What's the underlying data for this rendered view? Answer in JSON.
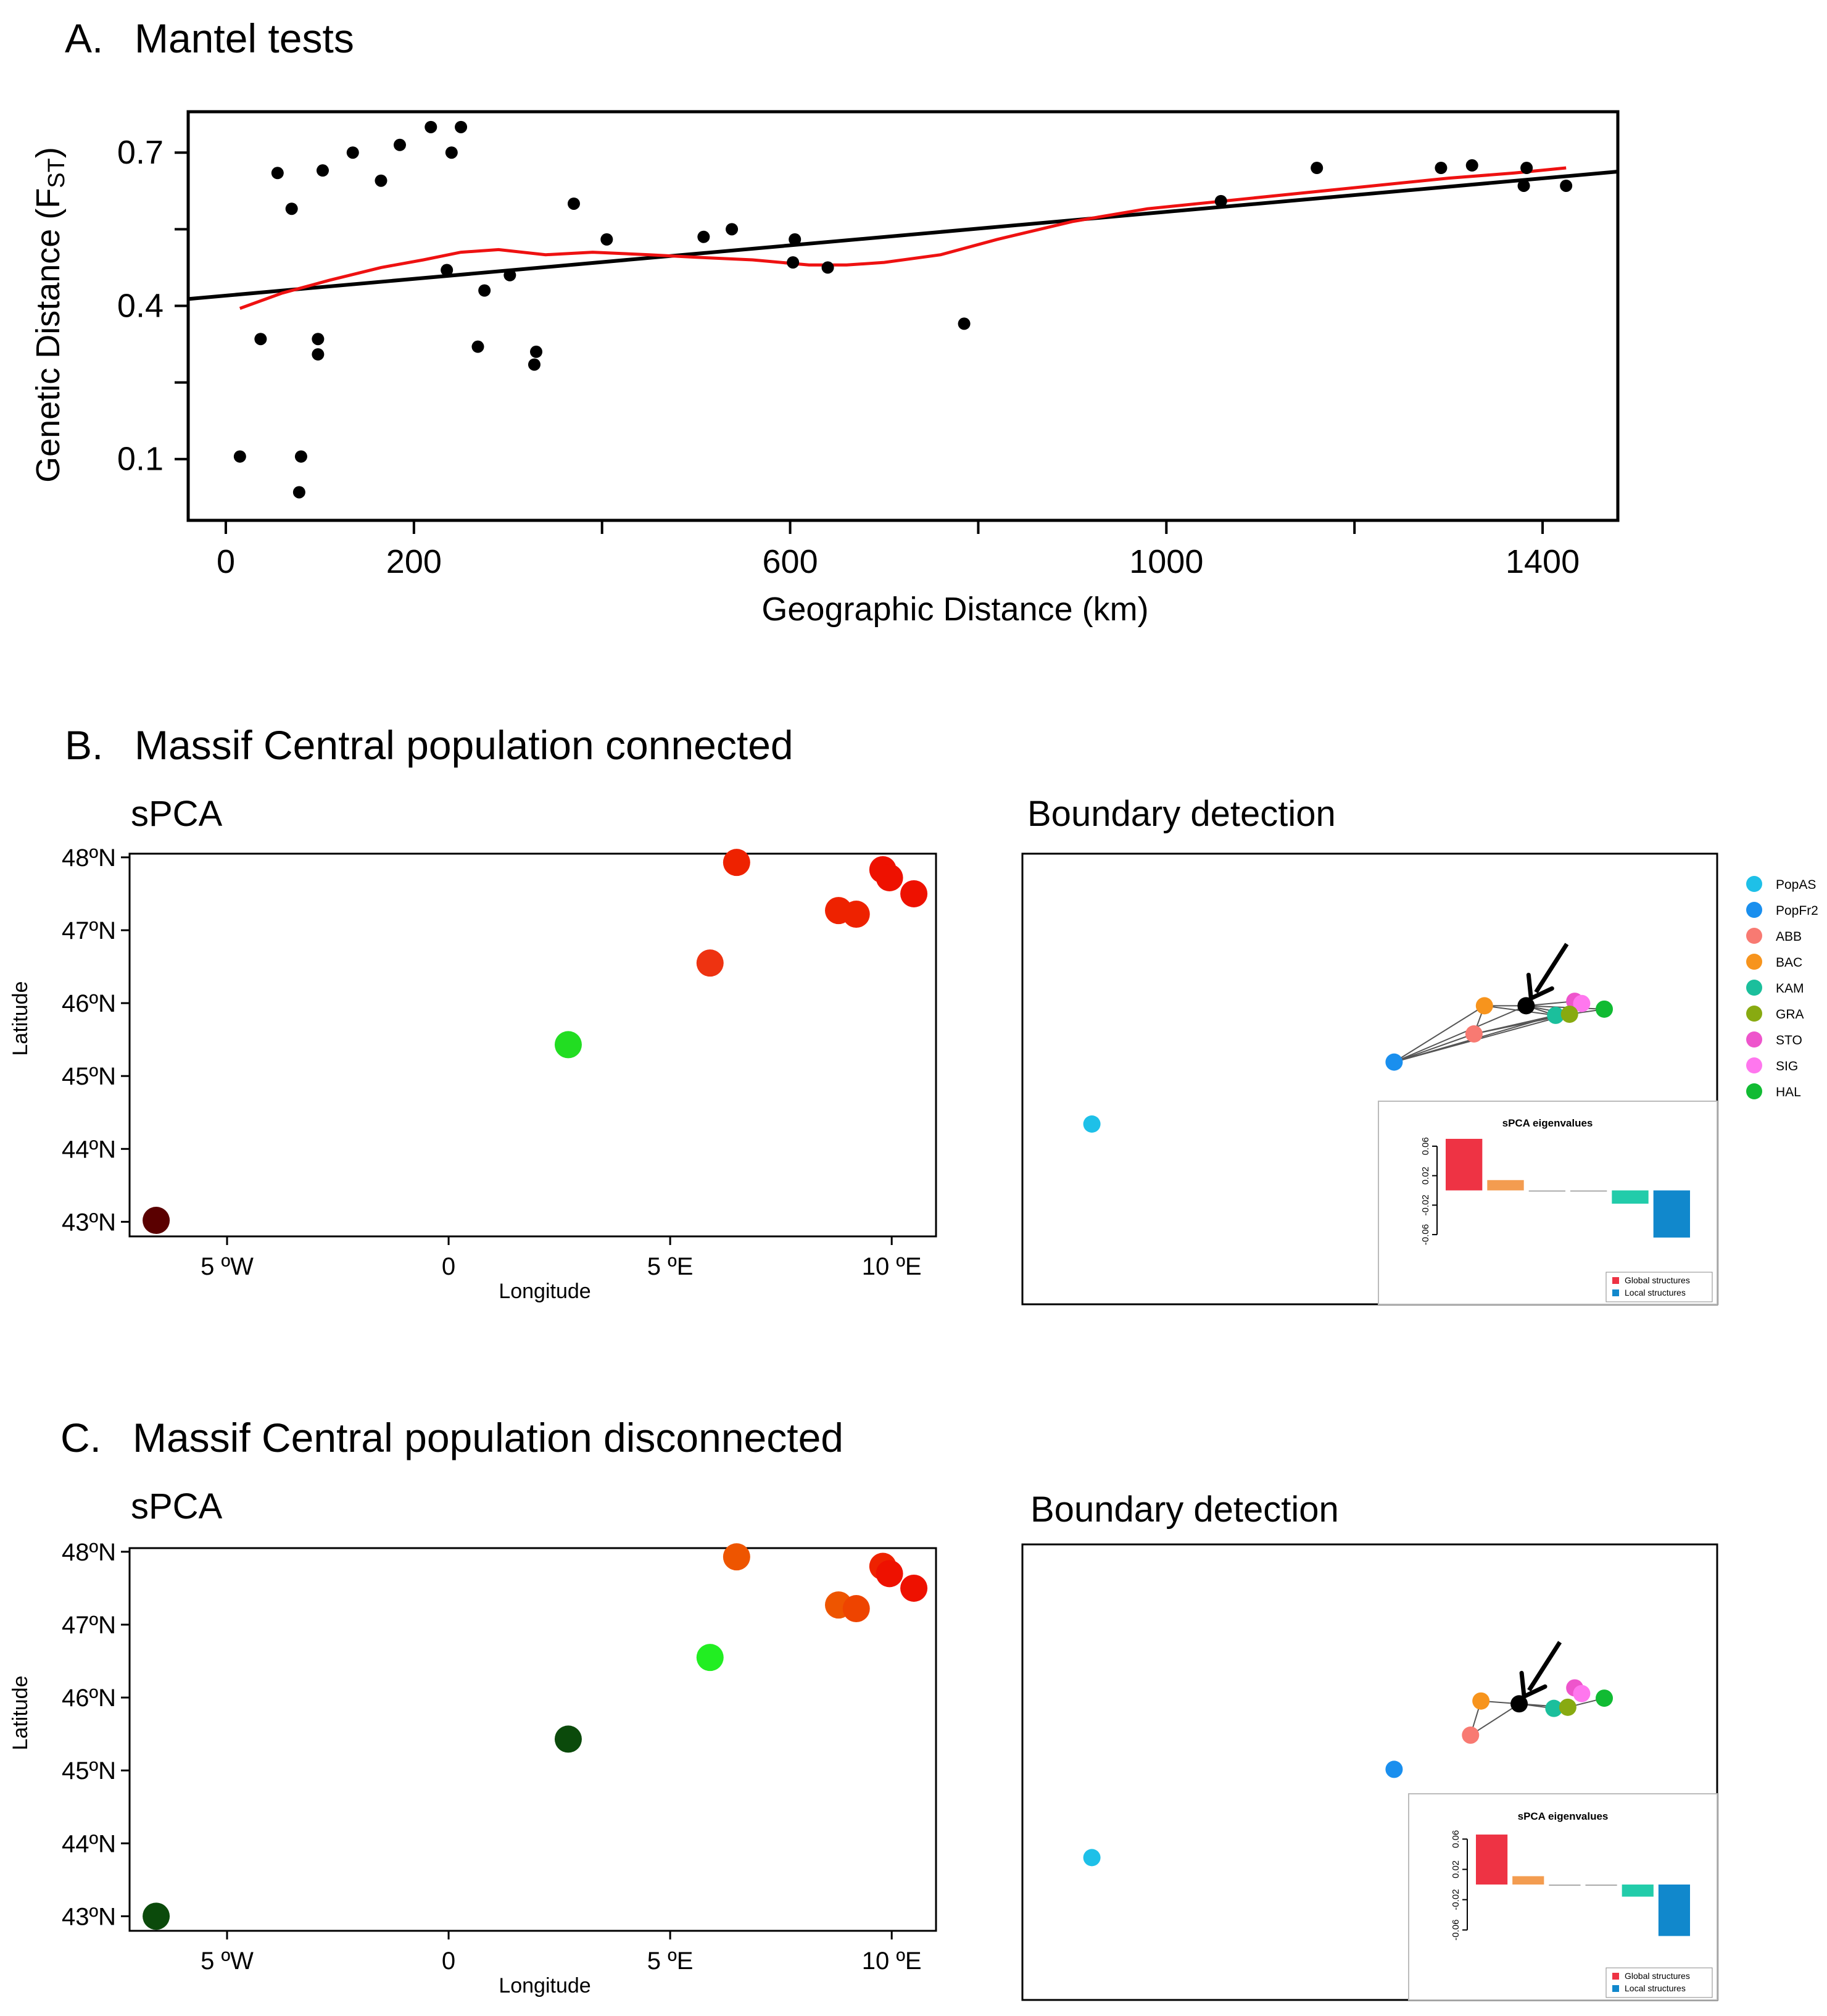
{
  "panels": {
    "A": {
      "label": "A.",
      "title": "Mantel tests"
    },
    "B": {
      "label": "B.",
      "title": "Massif Central population  connected"
    },
    "C": {
      "label": "C.",
      "title": "Massif Central population  disconnected"
    }
  },
  "colors": {
    "points": "#000000",
    "regression": "#000000",
    "loess": "#ee1111",
    "grid_lines": "#555555"
  },
  "chart_data": [
    {
      "id": "mantel",
      "type": "scatter",
      "title": "Mantel tests",
      "xlabel": "Geographic Distance (km)",
      "ylabel_main": "Genetic Distance (F",
      "ylabel_sub": "ST",
      "ylabel_end": ")",
      "xlim": [
        -40,
        1480
      ],
      "ylim": [
        -0.02,
        0.78
      ],
      "xticks": [
        0,
        200,
        600,
        1000,
        1400
      ],
      "xticklabels": [
        "0",
        "200",
        "600",
        "1000",
        "1400"
      ],
      "xminor": [
        400,
        800,
        1200
      ],
      "yticks": [
        0.1,
        0.4,
        0.7
      ],
      "yticklabels": [
        "0.1",
        "0.4",
        "0.7"
      ],
      "yminor": [
        0.25,
        0.55
      ],
      "points": [
        [
          15,
          0.105
        ],
        [
          37,
          0.335
        ],
        [
          55,
          0.66
        ],
        [
          70,
          0.59
        ],
        [
          78,
          0.035
        ],
        [
          80,
          0.105
        ],
        [
          98,
          0.335
        ],
        [
          98,
          0.305
        ],
        [
          103,
          0.665
        ],
        [
          135,
          0.7
        ],
        [
          165,
          0.645
        ],
        [
          185,
          0.715
        ],
        [
          218,
          0.75
        ],
        [
          235,
          0.47
        ],
        [
          240,
          0.7
        ],
        [
          250,
          0.75
        ],
        [
          268,
          0.32
        ],
        [
          275,
          0.43
        ],
        [
          302,
          0.46
        ],
        [
          328,
          0.285
        ],
        [
          330,
          0.31
        ],
        [
          370,
          0.6
        ],
        [
          405,
          0.53
        ],
        [
          508,
          0.535
        ],
        [
          538,
          0.55
        ],
        [
          603,
          0.485
        ],
        [
          605,
          0.53
        ],
        [
          640,
          0.475
        ],
        [
          785,
          0.365
        ],
        [
          1058,
          0.605
        ],
        [
          1160,
          0.67
        ],
        [
          1292,
          0.67
        ],
        [
          1325,
          0.675
        ],
        [
          1380,
          0.635
        ],
        [
          1383,
          0.67
        ],
        [
          1425,
          0.635
        ]
      ],
      "regression": {
        "intercept": 0.42,
        "slope": 0.000164
      },
      "loess": [
        [
          15,
          0.395
        ],
        [
          60,
          0.425
        ],
        [
          110,
          0.45
        ],
        [
          165,
          0.475
        ],
        [
          210,
          0.49
        ],
        [
          250,
          0.505
        ],
        [
          290,
          0.51
        ],
        [
          340,
          0.5
        ],
        [
          390,
          0.505
        ],
        [
          450,
          0.5
        ],
        [
          500,
          0.495
        ],
        [
          560,
          0.49
        ],
        [
          620,
          0.48
        ],
        [
          660,
          0.48
        ],
        [
          700,
          0.485
        ],
        [
          760,
          0.5
        ],
        [
          820,
          0.53
        ],
        [
          900,
          0.565
        ],
        [
          980,
          0.59
        ],
        [
          1060,
          0.605
        ],
        [
          1140,
          0.62
        ],
        [
          1220,
          0.635
        ],
        [
          1300,
          0.65
        ],
        [
          1370,
          0.66
        ],
        [
          1425,
          0.67
        ]
      ]
    },
    {
      "id": "spca_connected",
      "type": "scatter",
      "title": "sPCA",
      "xlabel": "Longitude",
      "ylabel": "Latitude",
      "xlim": [
        -7.2,
        11.0
      ],
      "ylim": [
        42.8,
        48.05
      ],
      "xticks": [
        -5,
        0,
        5,
        10
      ],
      "xticklabels": [
        "5 ºW",
        "0",
        "5 ºE",
        "10 ºE"
      ],
      "yticks": [
        43,
        44,
        45,
        46,
        47,
        48
      ],
      "yticklabels": [
        "43ºN",
        "44ºN",
        "45ºN",
        "46ºN",
        "47ºN",
        "48ºN"
      ],
      "points": [
        {
          "lon": -6.6,
          "lat": 43.02,
          "color": "#5a0000"
        },
        {
          "lon": 2.7,
          "lat": 45.43,
          "color": "#22dd22"
        },
        {
          "lon": 5.9,
          "lat": 46.55,
          "color": "#ee3311"
        },
        {
          "lon": 6.5,
          "lat": 47.93,
          "color": "#ee2200"
        },
        {
          "lon": 8.8,
          "lat": 47.27,
          "color": "#ee2200"
        },
        {
          "lon": 9.2,
          "lat": 47.22,
          "color": "#ee2200"
        },
        {
          "lon": 9.8,
          "lat": 47.83,
          "color": "#ee1100"
        },
        {
          "lon": 9.95,
          "lat": 47.72,
          "color": "#ee1100"
        },
        {
          "lon": 10.5,
          "lat": 47.5,
          "color": "#ee1100"
        }
      ]
    },
    {
      "id": "boundary_connected",
      "type": "scatter",
      "title": "Boundary detection",
      "xlim": [
        -8,
        12
      ],
      "ylim": [
        41.5,
        49.5
      ],
      "sites": [
        {
          "lon": -6.0,
          "lat": 44.7,
          "name": "PopAS"
        },
        {
          "lon": 2.7,
          "lat": 45.8,
          "name": "PopFr2"
        },
        {
          "lon": 5.0,
          "lat": 46.3,
          "name": "ABB"
        },
        {
          "lon": 5.3,
          "lat": 46.8,
          "name": "BAC"
        },
        {
          "lon": 6.5,
          "lat": 46.8,
          "name": "boundary"
        },
        {
          "lon": 7.9,
          "lat": 46.88,
          "name": "STO"
        },
        {
          "lon": 8.1,
          "lat": 46.84,
          "name": "SIG"
        },
        {
          "lon": 7.35,
          "lat": 46.63,
          "name": "KAM"
        },
        {
          "lon": 7.75,
          "lat": 46.65,
          "name": "GRA"
        },
        {
          "lon": 8.75,
          "lat": 46.74,
          "name": "HAL"
        }
      ],
      "edges": [
        [
          1,
          2
        ],
        [
          1,
          3
        ],
        [
          1,
          7
        ],
        [
          1,
          8
        ],
        [
          1,
          4
        ],
        [
          2,
          3
        ],
        [
          2,
          7
        ],
        [
          2,
          8
        ],
        [
          3,
          4
        ],
        [
          3,
          7
        ],
        [
          4,
          7
        ],
        [
          4,
          8
        ],
        [
          4,
          5
        ],
        [
          4,
          9
        ],
        [
          7,
          8
        ],
        [
          8,
          9
        ],
        [
          5,
          6
        ]
      ],
      "arrow_target": 4,
      "eigen": {
        "title": "sPCA eigenvalues",
        "values": [
          0.07,
          0.014,
          -0.001,
          -0.001,
          -0.018,
          -0.064
        ],
        "colors": [
          "#ee3344",
          "#f39c50",
          "#aaaaaa",
          "#aaaaaa",
          "#22ccaa",
          "#1188cc"
        ],
        "yticks": [
          0.06,
          0.02,
          -0.02,
          -0.06
        ],
        "yticklabels": [
          "0.06",
          "0.02",
          "-0.02",
          "-0.06"
        ],
        "legend": [
          "Global structures",
          "Local structures"
        ],
        "legend_colors": [
          "#ee3344",
          "#1188cc"
        ]
      }
    },
    {
      "id": "spca_disconnected",
      "type": "scatter",
      "title": "sPCA",
      "xlabel": "Longitude",
      "ylabel": "Latitude",
      "xlim": [
        -7.2,
        11.0
      ],
      "ylim": [
        42.8,
        48.05
      ],
      "xticks": [
        -5,
        0,
        5,
        10
      ],
      "xticklabels": [
        "5 ºW",
        "0",
        "5 ºE",
        "10 ºE"
      ],
      "yticks": [
        43,
        44,
        45,
        46,
        47,
        48
      ],
      "yticklabels": [
        "43ºN",
        "44ºN",
        "45ºN",
        "46ºN",
        "47ºN",
        "48ºN"
      ],
      "points": [
        {
          "lon": -6.6,
          "lat": 43.0,
          "color": "#0b4a0b"
        },
        {
          "lon": 2.7,
          "lat": 45.43,
          "color": "#0b4a0b"
        },
        {
          "lon": 5.9,
          "lat": 46.55,
          "color": "#22ee22"
        },
        {
          "lon": 6.5,
          "lat": 47.93,
          "color": "#ee5500"
        },
        {
          "lon": 8.8,
          "lat": 47.27,
          "color": "#ee5500"
        },
        {
          "lon": 9.2,
          "lat": 47.22,
          "color": "#ee4400"
        },
        {
          "lon": 9.8,
          "lat": 47.8,
          "color": "#ee2200"
        },
        {
          "lon": 9.95,
          "lat": 47.7,
          "color": "#ee1100"
        },
        {
          "lon": 10.5,
          "lat": 47.5,
          "color": "#ee1100"
        }
      ]
    },
    {
      "id": "boundary_disconnected",
      "type": "scatter",
      "title": "Boundary detection",
      "xlim": [
        -8,
        12
      ],
      "ylim": [
        41.5,
        49.5
      ],
      "sites": [
        {
          "lon": -6.0,
          "lat": 44.0,
          "name": "PopAS"
        },
        {
          "lon": 2.7,
          "lat": 45.55,
          "name": "PopFr2"
        },
        {
          "lon": 4.9,
          "lat": 46.15,
          "name": "ABB"
        },
        {
          "lon": 5.2,
          "lat": 46.75,
          "name": "BAC"
        },
        {
          "lon": 6.3,
          "lat": 46.7,
          "name": "boundary"
        },
        {
          "lon": 7.9,
          "lat": 46.98,
          "name": "STO"
        },
        {
          "lon": 8.1,
          "lat": 46.88,
          "name": "SIG"
        },
        {
          "lon": 7.3,
          "lat": 46.62,
          "name": "KAM"
        },
        {
          "lon": 7.7,
          "lat": 46.64,
          "name": "GRA"
        },
        {
          "lon": 8.75,
          "lat": 46.8,
          "name": "HAL"
        }
      ],
      "edges": [
        [
          2,
          3
        ],
        [
          3,
          4
        ],
        [
          4,
          7
        ],
        [
          4,
          8
        ],
        [
          7,
          8
        ],
        [
          8,
          9
        ],
        [
          5,
          6
        ],
        [
          2,
          4
        ]
      ],
      "arrow_target": 4,
      "eigen": {
        "title": "sPCA eigenvalues",
        "values": [
          0.066,
          0.011,
          -0.001,
          -0.001,
          -0.016,
          -0.068
        ],
        "colors": [
          "#ee3344",
          "#f39c50",
          "#aaaaaa",
          "#aaaaaa",
          "#22ccaa",
          "#1188cc"
        ],
        "yticks": [
          0.06,
          0.02,
          -0.02,
          -0.06
        ],
        "yticklabels": [
          "0.06",
          "0.02",
          "-0.02",
          "-0.06"
        ],
        "legend": [
          "Global structures",
          "Local structures"
        ],
        "legend_colors": [
          "#ee3344",
          "#1188cc"
        ]
      }
    }
  ],
  "site_legend": {
    "items": [
      {
        "name": "PopAS",
        "color": "#1ec0e8"
      },
      {
        "name": "PopFr2",
        "color": "#1a8fee"
      },
      {
        "name": "ABB",
        "color": "#f87a72"
      },
      {
        "name": "BAC",
        "color": "#f7941d"
      },
      {
        "name": "KAM",
        "color": "#1bbf9c"
      },
      {
        "name": "GRA",
        "color": "#88aa11"
      },
      {
        "name": "STO",
        "color": "#ee55cc"
      },
      {
        "name": "SIG",
        "color": "#ff77ee"
      },
      {
        "name": "HAL",
        "color": "#11bb33"
      }
    ],
    "boundary_color": "#000000"
  }
}
